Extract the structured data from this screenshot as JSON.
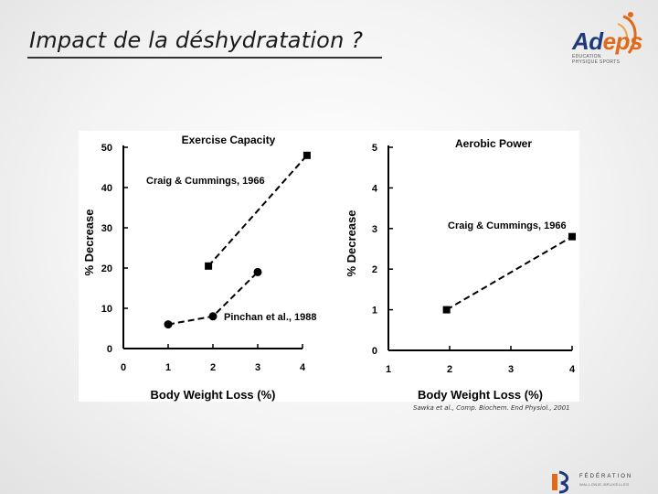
{
  "slide": {
    "title": "Impact de la déshydratation ?",
    "citation": "Sawka et al., Comp. Biochem. End Physiol., 2001"
  },
  "logos": {
    "adeps": {
      "word_part1": "Ad",
      "word_part2": "eps",
      "line1": "EDUCATION",
      "line2": "PHYSIQUE SPORTS"
    },
    "federation": {
      "line1": "FÉDÉRATION",
      "line2": "WALLONIE-BRUXELLES"
    }
  },
  "colors": {
    "adeps_blue": "#1f3a7a",
    "adeps_orange": "#e06a1a",
    "plot": "#000000"
  },
  "chart_data": [
    {
      "type": "line",
      "title": "Exercise Capacity",
      "xlabel": "Body Weight Loss (%)",
      "ylabel": "% Decrease",
      "xlim": [
        0,
        4
      ],
      "ylim": [
        0,
        50
      ],
      "xticks": [
        "0",
        "1",
        "2",
        "3",
        "4"
      ],
      "yticks": [
        "0",
        "10",
        "20",
        "30",
        "40",
        "50"
      ],
      "series": [
        {
          "name": "Craig & Cummings, 1966",
          "marker": "square",
          "line": "dashed",
          "x": [
            1.9,
            4.1
          ],
          "y": [
            20.5,
            48
          ]
        },
        {
          "name": "Pinchan et al., 1988",
          "marker": "circle",
          "line": "dashed",
          "x": [
            1,
            2,
            3
          ],
          "y": [
            6,
            8,
            19
          ]
        }
      ]
    },
    {
      "type": "line",
      "title": "Aerobic Power",
      "xlabel": "Body Weight Loss (%)",
      "ylabel": "% Decrease",
      "xlim": [
        1,
        4
      ],
      "ylim": [
        0,
        5
      ],
      "xticks": [
        "1",
        "2",
        "3",
        "4"
      ],
      "yticks": [
        "0",
        "1",
        "2",
        "3",
        "4",
        "5"
      ],
      "series": [
        {
          "name": "Craig & Cummings, 1966",
          "marker": "square",
          "line": "dashed",
          "x": [
            1.95,
            4
          ],
          "y": [
            1,
            2.8
          ]
        }
      ]
    }
  ]
}
